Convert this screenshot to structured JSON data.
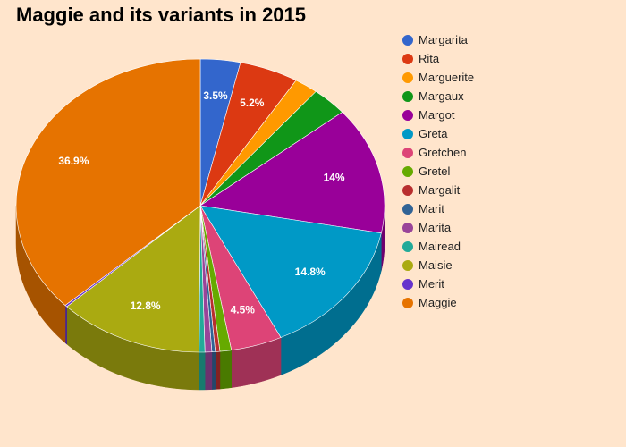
{
  "chart_data": {
    "type": "pie",
    "title": "Maggie and its variants in 2015",
    "three_d": true,
    "legend_position": "right",
    "series": [
      {
        "name": "Margarita",
        "value": 3.5,
        "label": "3.5%",
        "color": "#3366cc"
      },
      {
        "name": "Rita",
        "value": 5.2,
        "label": "5.2%",
        "color": "#dc3912"
      },
      {
        "name": "Marguerite",
        "value": 2.1,
        "label": "",
        "color": "#ff9900"
      },
      {
        "name": "Margaux",
        "value": 3.2,
        "label": "",
        "color": "#109618"
      },
      {
        "name": "Margot",
        "value": 14.0,
        "label": "14%",
        "color": "#990099"
      },
      {
        "name": "Greta",
        "value": 14.8,
        "label": "14.8%",
        "color": "#0099c6"
      },
      {
        "name": "Gretchen",
        "value": 4.5,
        "label": "4.5%",
        "color": "#dd4477"
      },
      {
        "name": "Gretel",
        "value": 1.0,
        "label": "",
        "color": "#66aa00"
      },
      {
        "name": "Margalit",
        "value": 0.4,
        "label": "",
        "color": "#b82e2e"
      },
      {
        "name": "Marit",
        "value": 0.3,
        "label": "",
        "color": "#316395"
      },
      {
        "name": "Marita",
        "value": 0.6,
        "label": "",
        "color": "#994499"
      },
      {
        "name": "Mairead",
        "value": 0.5,
        "label": "",
        "color": "#22aa99"
      },
      {
        "name": "Maisie",
        "value": 12.8,
        "label": "12.8%",
        "color": "#aaaa11"
      },
      {
        "name": "Merit",
        "value": 0.2,
        "label": "",
        "color": "#6633cc"
      },
      {
        "name": "Maggie",
        "value": 36.9,
        "label": "36.9%",
        "color": "#e67300"
      }
    ]
  }
}
